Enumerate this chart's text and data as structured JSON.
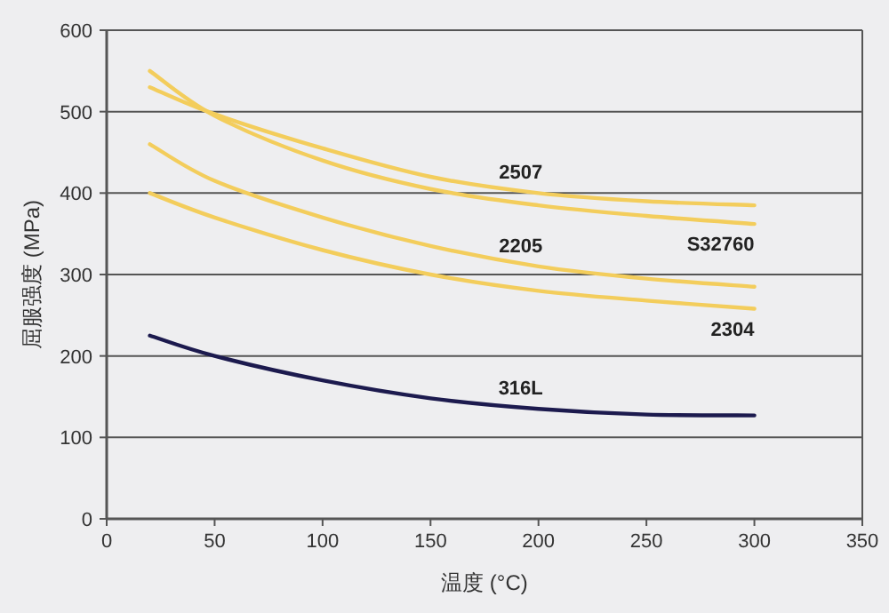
{
  "chart_data": {
    "type": "line",
    "xlabel": "温度 (°C)",
    "ylabel": "屈服强度 (MPa)",
    "x": [
      20,
      50,
      100,
      150,
      200,
      250,
      300
    ],
    "xlim": [
      0,
      350
    ],
    "xticks": [
      0,
      50,
      100,
      150,
      200,
      250,
      300,
      350
    ],
    "ylim": [
      0,
      600
    ],
    "yticks": [
      0,
      100,
      200,
      300,
      400,
      500,
      600
    ],
    "grid": "y",
    "marker": "none",
    "line_style": "solid",
    "series": [
      {
        "name": "2507",
        "color": "#f3cd5c",
        "values": [
          530,
          497,
          455,
          420,
          400,
          390,
          385
        ]
      },
      {
        "name": "S32760",
        "color": "#f3cd5c",
        "values": [
          550,
          495,
          440,
          405,
          385,
          372,
          362
        ]
      },
      {
        "name": "2205",
        "color": "#f3cd5c",
        "values": [
          460,
          415,
          370,
          335,
          310,
          295,
          285
        ]
      },
      {
        "name": "2304",
        "color": "#f3cd5c",
        "values": [
          400,
          370,
          330,
          300,
          280,
          268,
          258
        ]
      },
      {
        "name": "316L",
        "color": "#1c1a4e",
        "values": [
          225,
          200,
          170,
          148,
          135,
          128,
          127
        ]
      }
    ]
  }
}
